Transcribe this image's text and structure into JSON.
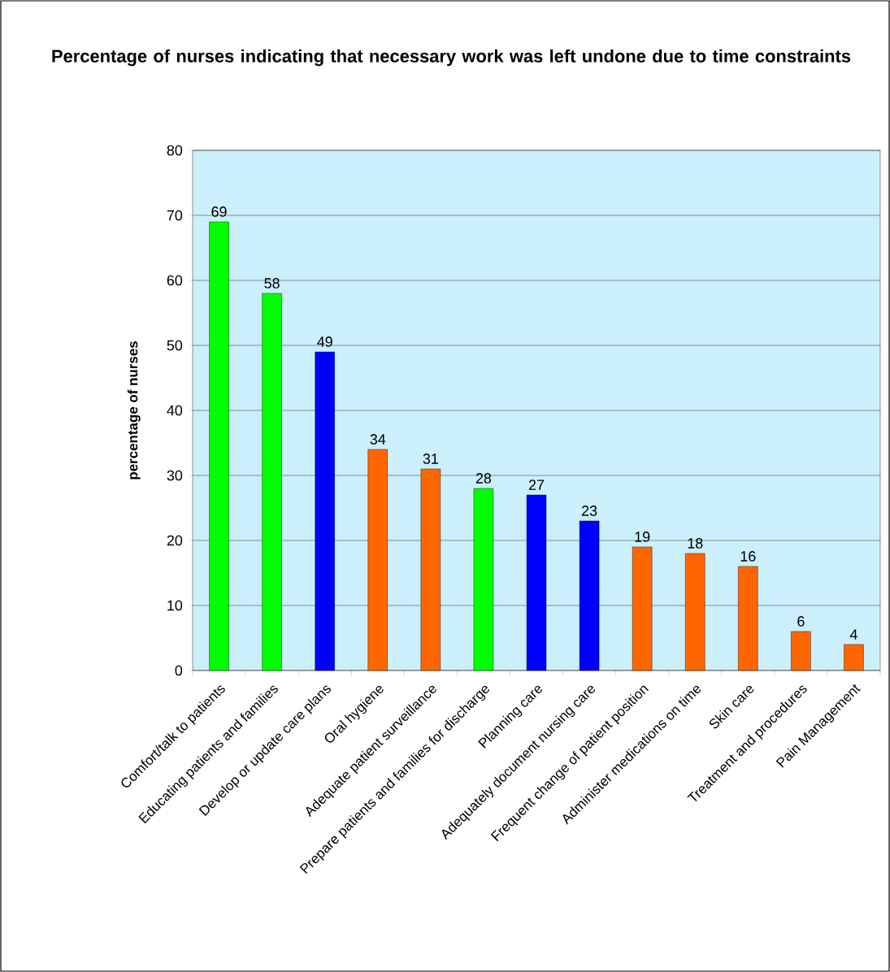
{
  "chart_data": {
    "type": "bar",
    "title": "Percentage of nurses indicating that necessary work was left undone due to time constraints",
    "ylabel": "percentage of nurses",
    "categories": [
      "Comfort/talk to patients",
      "Educating patients and families",
      "Develop or update care plans",
      "Oral hygiene",
      "Adequate patient surveillance",
      "Prepare patients and families for discharge",
      "Planning care",
      "Adequately document nursing care",
      "Frequent change of patient position",
      "Administer medications on time",
      "Skin care",
      "Treatment and procedures",
      "Pain Management"
    ],
    "values": [
      69,
      58,
      49,
      34,
      31,
      28,
      27,
      23,
      19,
      18,
      16,
      6,
      4
    ],
    "colors": [
      "#00ff00",
      "#00ff00",
      "#0000ff",
      "#ff6600",
      "#ff6600",
      "#00ff00",
      "#0000ff",
      "#0000ff",
      "#ff6600",
      "#ff6600",
      "#ff6600",
      "#ff6600",
      "#ff6600"
    ],
    "ylim": [
      0,
      80
    ],
    "yticks": [
      0,
      10,
      20,
      30,
      40,
      50,
      60,
      70,
      80
    ],
    "grid": "y",
    "data_labels": true
  }
}
